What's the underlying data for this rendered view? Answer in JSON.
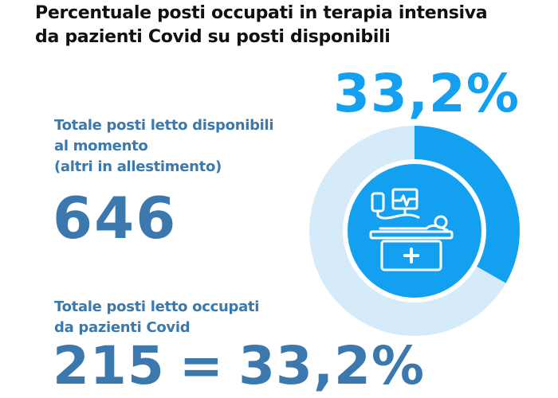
{
  "title": {
    "line1": "Percentuale posti occupati in terapia intensiva",
    "line2": "da pazienti Covid su posti disponibili"
  },
  "highlight_percent": "33,2%",
  "available": {
    "label_line1": "Totale posti letto disponibili",
    "label_line2": "al momento",
    "label_line3": "(altri in allestimento)",
    "value": "646"
  },
  "occupied": {
    "label_line1": "Totale posti letto occupati",
    "label_line2": "da pazienti Covid",
    "value": "215",
    "equals": "=",
    "percent": "33,2%"
  },
  "chart_data": {
    "type": "pie",
    "labels": [
      "Occupati",
      "Disponibili"
    ],
    "values": [
      215,
      431
    ],
    "total": 646,
    "percent_occupied": 33.2,
    "colors": {
      "occupied": "#14a0f0",
      "free": "#d5ebf9",
      "center": "#14a0f0"
    },
    "center_icon": "hospital-bed-icon"
  }
}
